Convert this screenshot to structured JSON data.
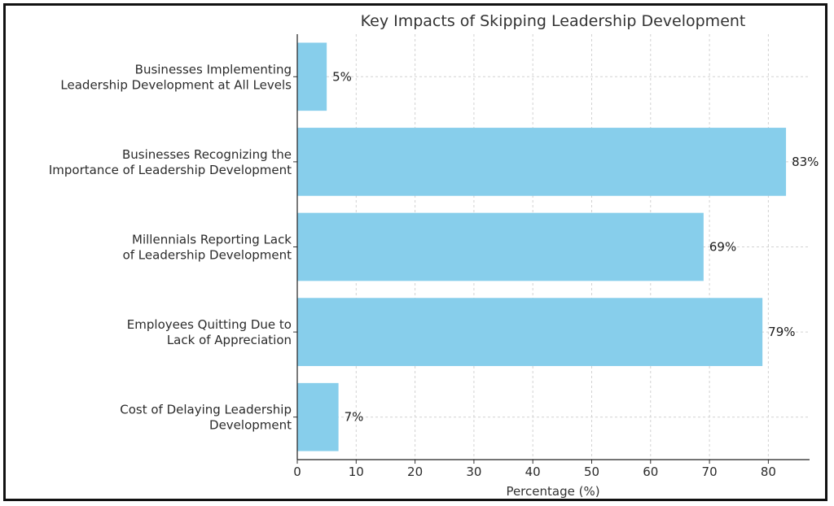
{
  "chart_data": {
    "type": "bar",
    "orientation": "horizontal",
    "title": "Key Impacts of Skipping Leadership Development",
    "xlabel": "Percentage (%)",
    "ylabel": "",
    "xlim": [
      0,
      87
    ],
    "xticks": [
      0,
      10,
      20,
      30,
      40,
      50,
      60,
      70,
      80
    ],
    "grid": true,
    "bar_color": "#87ceeb",
    "categories": [
      [
        "Businesses Implementing",
        "Leadership Development at All Levels"
      ],
      [
        "Businesses Recognizing the",
        "Importance of Leadership Development"
      ],
      [
        "Millennials Reporting Lack",
        "of Leadership Development"
      ],
      [
        "Employees Quitting Due to",
        "Lack of Appreciation"
      ],
      [
        "Cost of Delaying Leadership",
        "Development"
      ]
    ],
    "values": [
      5,
      83,
      69,
      79,
      7
    ],
    "value_labels": [
      "5%",
      "83%",
      "69%",
      "79%",
      "7%"
    ]
  }
}
